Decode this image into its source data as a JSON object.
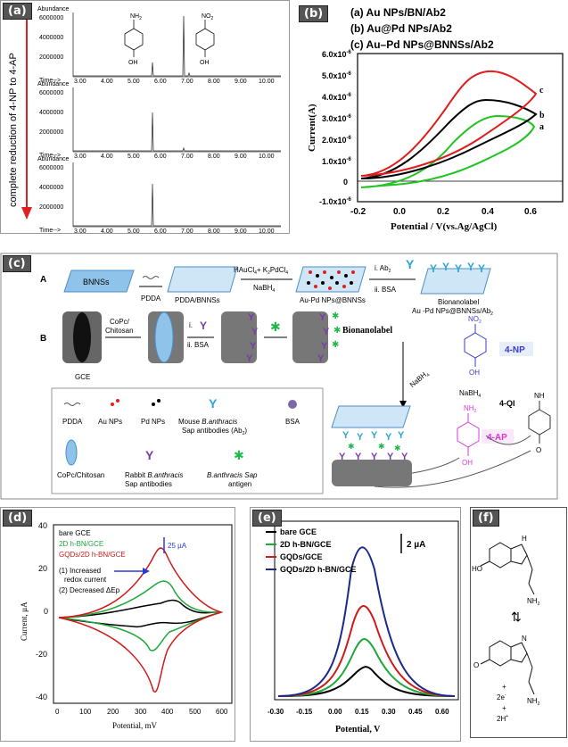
{
  "panels": {
    "a": {
      "tag": "(a)",
      "ylabel": "Abundance",
      "xlabel": "Time-->",
      "y_ticks": [
        "6000000",
        "4000000",
        "2000000"
      ],
      "x_ticks": [
        "3.00",
        "4.00",
        "5.00",
        "6.00",
        "7.00",
        "8.00",
        "9.00",
        "10.00"
      ],
      "arrow_text": "complete reduction of 4-NP to 4-AP",
      "mol1_top": "NH",
      "mol1_top_sub": "2",
      "mol1_bottom": "OH",
      "mol2_top": "NO",
      "mol2_top_sub": "2",
      "mol2_bottom": "OH",
      "colors": {
        "arrow": "#e02020",
        "trace": "#333333"
      }
    },
    "b": {
      "tag": "(b)",
      "legend": [
        "(a) Au NPs/BN/Ab2",
        "(b) Au@Pd NPs/Ab2",
        "(c) Au–Pd NPs@BNNSs/Ab2"
      ],
      "ylabel": "Current(A)",
      "xlabel": "Potential / V(vs.Ag/AgCl)",
      "y_ticks": [
        "6.0x10",
        "5.0x10",
        "4.0x10",
        "3.0x10",
        "2.0x10",
        "1.0x10",
        "0",
        "-1.0x10"
      ],
      "y_exp": "-6",
      "x_ticks": [
        "-0.2",
        "0.0",
        "0.2",
        "0.4",
        "0.6"
      ],
      "curve_labels": [
        "c",
        "b",
        "a"
      ],
      "colors": {
        "a": "#22c322",
        "b": "#000000",
        "c": "#e01c1c"
      }
    },
    "c": {
      "tag": "(c)",
      "rowA": "A",
      "rowB": "B",
      "bnnss": "BNNSs",
      "pdda1": "PDDA",
      "pdda_bnnss": "PDDA/BNNSs",
      "reagent1": "HAuCl",
      "reagent1b": "+ K",
      "reagent1c": "PdCl",
      "nabh4": "NaBH",
      "aupd": "Au-Pd NPs@BNNSs",
      "step_i": "i.  Ab",
      "step_ii": "ii. BSA",
      "bionanolabel": "Bionanolabel",
      "bionanolabel2": "Au -Pd NPs@BNNSs/Ab",
      "cop": "CoPc/",
      "chitosan": "Chitosan",
      "gce": "GCE",
      "stepB_i": "i.",
      "stepB_ii": "ii. BSA",
      "bionanolabel_bold": "Bionanolabel",
      "np4": "4-NP",
      "ap4": "4-AP",
      "qi4": "4-QI",
      "nabh4_2": "NaBH",
      "no2": "NO",
      "nh2": "NH",
      "oh": "OH",
      "nh": "NH",
      "o": "O",
      "legend": {
        "pdda": "PDDA",
        "au": "Au NPs",
        "pd": "Pd NPs",
        "mouse": "Mouse",
        "mouse2": "B.anthracis",
        "mouse3": "Sap antibodies (Ab",
        "bsa": "BSA",
        "copc": "CoPc/Chitosan",
        "rabbit": "Rabbit",
        "rabbit2": "B.anthracis",
        "rabbit3": "Sap antibodies",
        "antigen": "B.anthracis Sap",
        "antigen2": "antigen"
      },
      "colors": {
        "sheet": "#8fc3ea",
        "antibody": "#2aa6d8",
        "rabbit": "#7a3aa8",
        "antigen": "#1fb84a",
        "au": "#e02020",
        "np": "#3a3ad0",
        "ap": "#d83ad8"
      }
    },
    "d": {
      "tag": "(d)",
      "legend": [
        "bare  GCE",
        "2D h-BN/GCE",
        "GQDs/2D h-BN/GCE"
      ],
      "scale": "25 µA",
      "notes": [
        "(1) Increased",
        "redox current",
        "(2) Decreased ΔEp"
      ],
      "ylabel": "Current, µA",
      "xlabel": "Potential, mV",
      "y_ticks": [
        "40",
        "20",
        "0",
        "-20",
        "-40"
      ],
      "x_ticks": [
        "0",
        "100",
        "200",
        "300",
        "400",
        "500",
        "600"
      ],
      "colors": {
        "bare": "#000000",
        "bn": "#1fa83a",
        "gqd": "#d01a1a",
        "arrow": "#2a3ad0"
      }
    },
    "e": {
      "tag": "(e)",
      "legend": [
        "bare GCE",
        "2D h-BN/GCE",
        "GQDs/GCE",
        "GQDs/2D h-BN/GCE"
      ],
      "scale": "2 µA",
      "xlabel": "Potential, V",
      "x_ticks": [
        "-0.30",
        "-0.15",
        "0.00",
        "0.15",
        "0.30",
        "0.45",
        "0.60"
      ],
      "colors": {
        "bare": "#000000",
        "bn": "#1fa83a",
        "gqd": "#d01a1a",
        "gqdbn": "#1a2a8a"
      }
    },
    "f": {
      "tag": "(f)",
      "ho": "HO",
      "nh2": "NH",
      "nh2_2": "NH",
      "plus1": "+",
      "e2": "2e",
      "plus2": "+",
      "h2": "2H",
      "o": "O",
      "n": "N",
      "h": "H"
    }
  }
}
